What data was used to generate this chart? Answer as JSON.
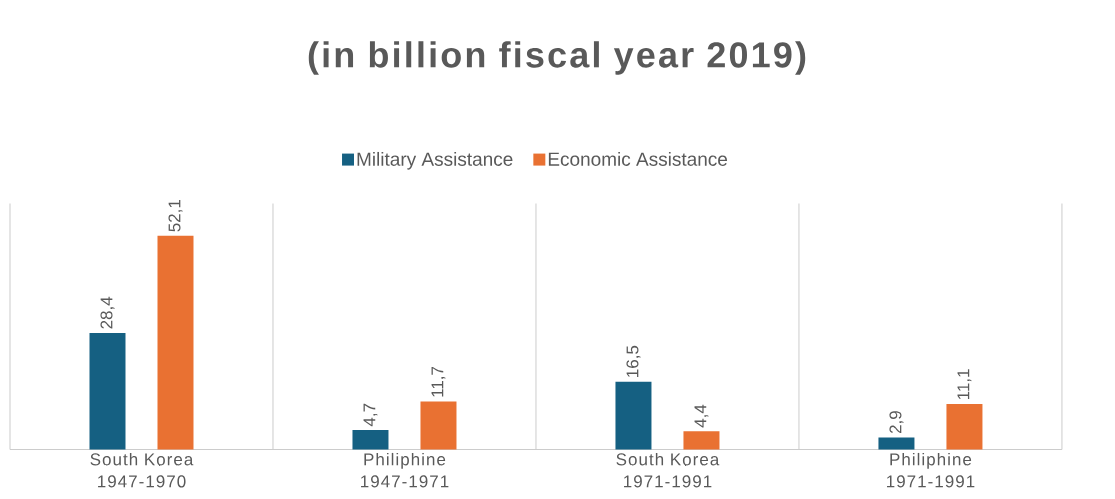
{
  "chart_data": {
    "type": "bar",
    "title": "(in billion fiscal year 2019)",
    "categories": [
      "South Korea 1947-1970",
      "Philiphine 1947-1971",
      "South Korea 1971-1991",
      "Philiphine 1971-1991"
    ],
    "series": [
      {
        "name": "Military Assistance",
        "color": "#156082",
        "values": [
          28.4,
          4.7,
          16.5,
          2.9
        ],
        "value_labels": [
          "28,4",
          "4,7",
          "16,5",
          "2,9"
        ]
      },
      {
        "name": "Economic Assistance",
        "color": "#e97132",
        "values": [
          52.1,
          11.7,
          4.4,
          11.1
        ],
        "value_labels": [
          "52,1",
          "11,7",
          "4,4",
          "11,1"
        ]
      }
    ],
    "ylim": [
      0,
      60
    ],
    "tick_labels": "x",
    "grid": "x",
    "legend": "top"
  }
}
